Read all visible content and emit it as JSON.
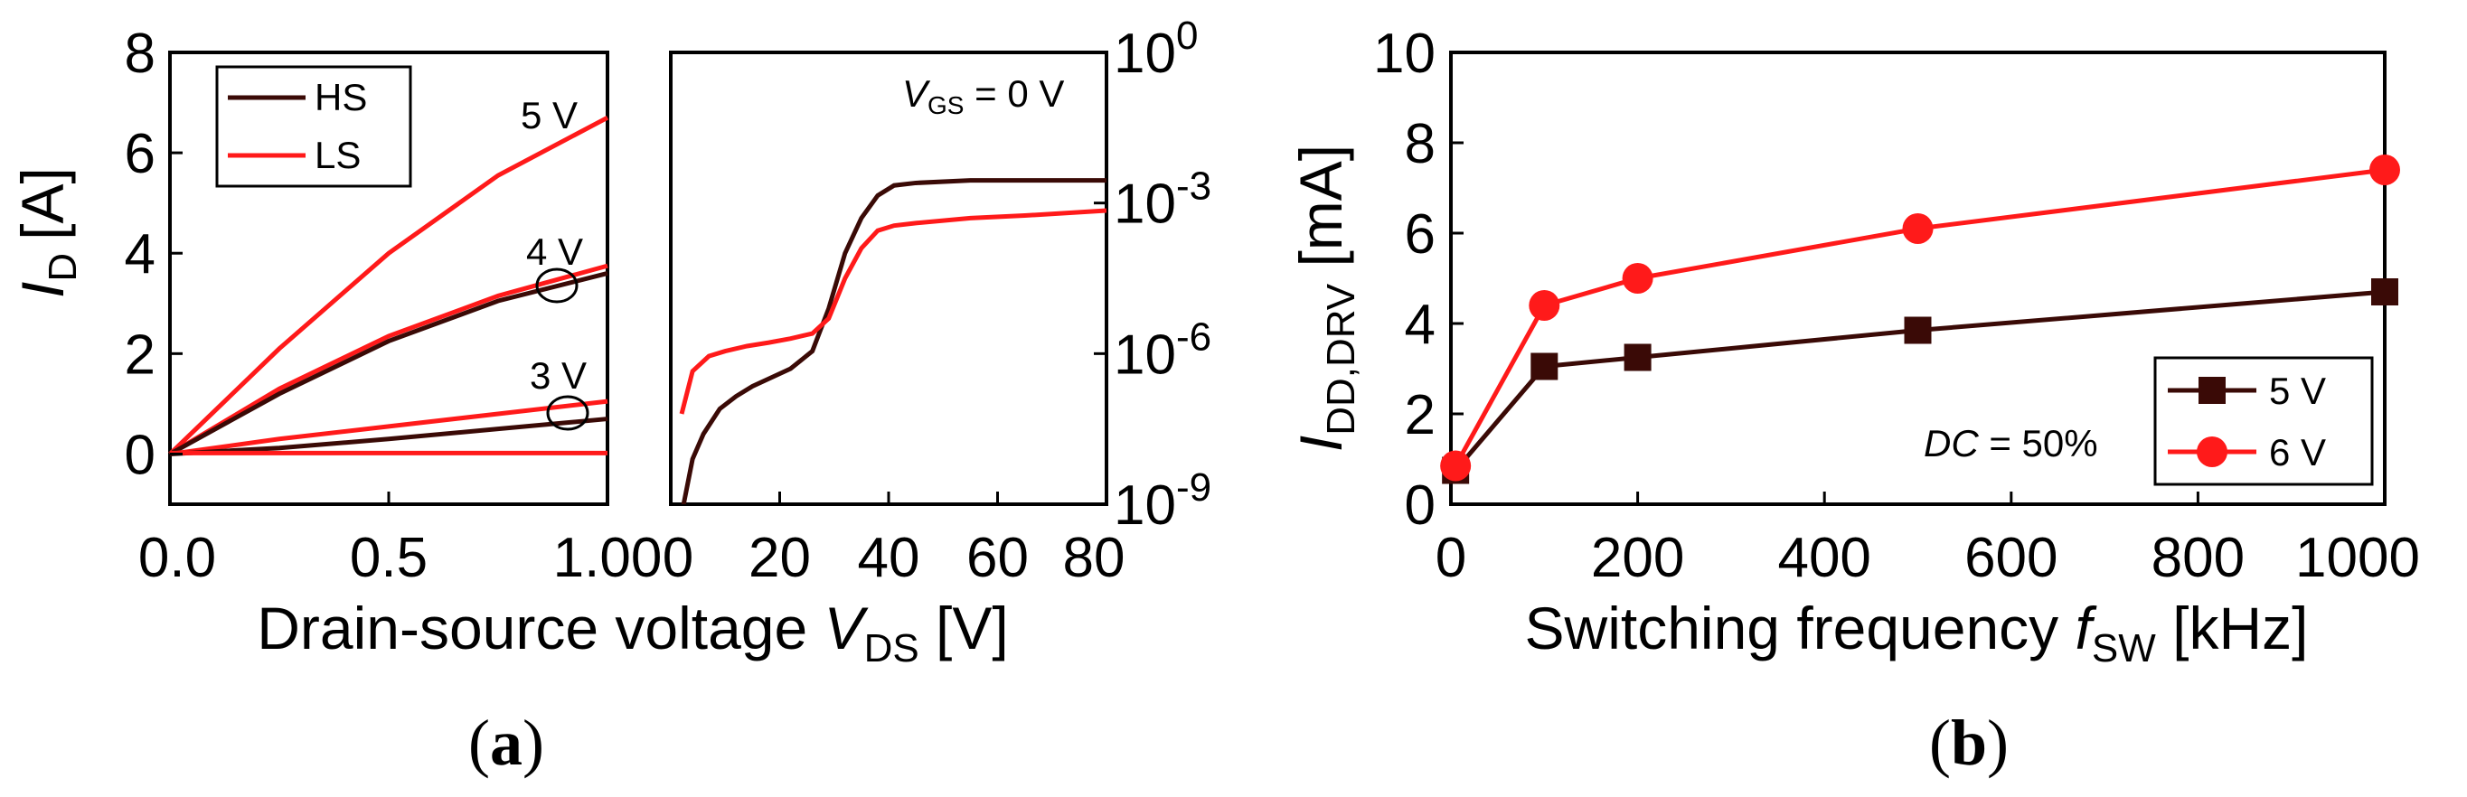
{
  "colors": {
    "hs": "#3a0a06",
    "ls": "#ff1a1a",
    "s5": "#3a0a06",
    "s6": "#ff1a1a"
  },
  "chart_data": [
    {
      "id": "a-left",
      "type": "line",
      "xlim": [
        0,
        1.0
      ],
      "ylim": [
        -1,
        8
      ],
      "xticks": [
        "0.0",
        "0.5",
        "1.00"
      ],
      "yticks": [
        "0",
        "2",
        "4",
        "6",
        "8"
      ],
      "ylabel_main": "I",
      "ylabel_sub": "D",
      "ylabel_unit": "[A]",
      "legend": {
        "position": "top-left",
        "entries": [
          "HS",
          "LS"
        ]
      },
      "annotations": [
        "5 V",
        "4 V",
        "3 V"
      ],
      "series": [
        {
          "name": "LS 5 V",
          "x": [
            0,
            0.25,
            0.5,
            0.75,
            1.0
          ],
          "y": [
            0,
            2.1,
            4.0,
            5.55,
            6.7
          ]
        },
        {
          "name": "LS 4 V",
          "x": [
            0,
            0.25,
            0.5,
            0.75,
            1.0
          ],
          "y": [
            0,
            1.3,
            2.35,
            3.15,
            3.75
          ]
        },
        {
          "name": "HS 4 V",
          "x": [
            0,
            0.25,
            0.5,
            0.75,
            1.0
          ],
          "y": [
            0,
            1.2,
            2.25,
            3.05,
            3.6
          ]
        },
        {
          "name": "LS 3 V",
          "x": [
            0,
            0.25,
            0.5,
            0.75,
            1.0
          ],
          "y": [
            0,
            0.3,
            0.55,
            0.8,
            1.05
          ]
        },
        {
          "name": "HS 3 V",
          "x": [
            0,
            0.25,
            0.5,
            0.75,
            1.0
          ],
          "y": [
            0,
            0.12,
            0.3,
            0.5,
            0.7
          ]
        },
        {
          "name": "LS 0 V",
          "x": [
            0,
            1.0
          ],
          "y": [
            0.02,
            0.02
          ]
        }
      ]
    },
    {
      "id": "a-right",
      "type": "line",
      "xlim": [
        0,
        80
      ],
      "ylog": [
        -9,
        0
      ],
      "xticks": [
        "0",
        "20",
        "40",
        "60",
        "80"
      ],
      "ytick_base": "10",
      "ytick_exps": [
        "0",
        "-3",
        "-6",
        "-9"
      ],
      "title_main": "V",
      "title_sub": "GS",
      "title_rest": " = 0 V",
      "series": [
        {
          "name": "HS",
          "x": [
            2,
            4,
            6,
            9,
            12,
            15,
            18,
            22,
            26,
            29,
            32,
            35,
            38,
            41,
            45,
            55,
            65,
            80
          ],
          "y": [
            -9.2,
            -8.1,
            -7.6,
            -7.1,
            -6.85,
            -6.65,
            -6.5,
            -6.3,
            -5.95,
            -5.1,
            -4.0,
            -3.3,
            -2.85,
            -2.65,
            -2.6,
            -2.55,
            -2.55,
            -2.55
          ]
        },
        {
          "name": "LS",
          "x": [
            2,
            4,
            7,
            10,
            14,
            18,
            22,
            26,
            29,
            32,
            35,
            38,
            41,
            45,
            55,
            65,
            80
          ],
          "y": [
            -7.2,
            -6.35,
            -6.05,
            -5.95,
            -5.85,
            -5.78,
            -5.7,
            -5.6,
            -5.3,
            -4.5,
            -3.9,
            -3.55,
            -3.45,
            -3.4,
            -3.3,
            -3.25,
            -3.15
          ]
        }
      ]
    },
    {
      "id": "b",
      "type": "line",
      "xlim": [
        0,
        1000
      ],
      "ylim": [
        0,
        10
      ],
      "xticks": [
        "0",
        "200",
        "400",
        "600",
        "800",
        "1000"
      ],
      "yticks": [
        "0",
        "2",
        "4",
        "6",
        "8",
        "10"
      ],
      "xlabel_pre": "Switching frequency ",
      "xlabel_main": "f",
      "xlabel_sub": "SW",
      "xlabel_unit": " [kHz]",
      "ylabel_main": "I",
      "ylabel_sub": "DD,DRV",
      "ylabel_unit": " [mA]",
      "annotation_main": "DC",
      "annotation_rest": " = 50%",
      "legend": {
        "position": "bottom-right"
      },
      "series": [
        {
          "name": "5 V",
          "marker": "square",
          "x": [
            5,
            100,
            200,
            500,
            1000
          ],
          "y": [
            0.75,
            3.05,
            3.25,
            3.85,
            4.7
          ]
        },
        {
          "name": "6 V",
          "marker": "circle",
          "x": [
            5,
            100,
            200,
            500,
            1000
          ],
          "y": [
            0.85,
            4.4,
            5.0,
            6.1,
            7.4
          ]
        }
      ]
    }
  ],
  "shared_xlabel": {
    "pre": "Drain-source voltage ",
    "main": "V",
    "sub": "DS",
    "unit": " [V]"
  },
  "captions": {
    "a_open": "(",
    "a_letter": "a",
    "a_close": ")",
    "b_open": "(",
    "b_letter": "b",
    "b_close": ")"
  }
}
